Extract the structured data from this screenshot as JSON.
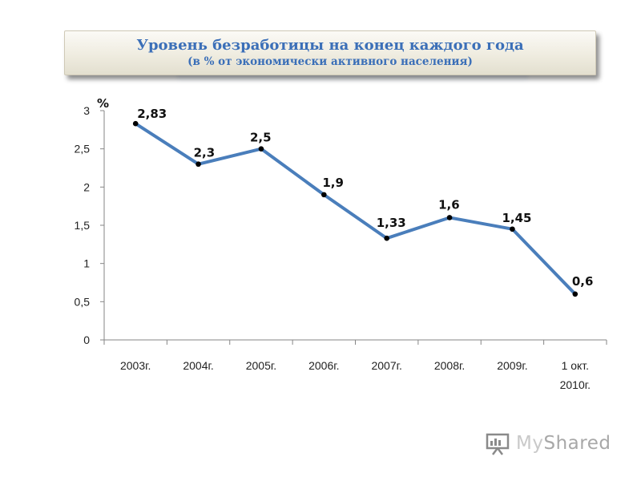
{
  "header": {
    "title": "Уровень безработицы на конец каждого года",
    "subtitle": "(в % от экономически активного населения)"
  },
  "chart_data": {
    "type": "line",
    "title": "Уровень безработицы на конец каждого года",
    "subtitle": "(в % от экономически активного населения)",
    "ylabel": "%",
    "xlabel": "",
    "categories": [
      [
        "2003г."
      ],
      [
        "2004г."
      ],
      [
        "2005г."
      ],
      [
        "2006г."
      ],
      [
        "2007г."
      ],
      [
        "2008г."
      ],
      [
        "2009г."
      ],
      [
        "1 окт.",
        "2010г."
      ]
    ],
    "series": [
      {
        "values": [
          2.83,
          2.3,
          2.5,
          1.9,
          1.33,
          1.6,
          1.45,
          0.6
        ],
        "labels": [
          "2,83",
          "2,3",
          "2,5",
          "1,9",
          "1,33",
          "1,6",
          "1,45",
          "0,6"
        ],
        "color": "#4a7ebb"
      }
    ],
    "ylim": [
      0,
      3
    ],
    "yticks": [
      0,
      0.5,
      1,
      1.5,
      2,
      2.5,
      3
    ],
    "ytick_labels": [
      "0",
      "0,5",
      "1",
      "1,5",
      "2",
      "2,5",
      "3"
    ],
    "grid": false,
    "legend": "none"
  },
  "watermark": {
    "text_a": "My",
    "text_b": "Shared"
  }
}
